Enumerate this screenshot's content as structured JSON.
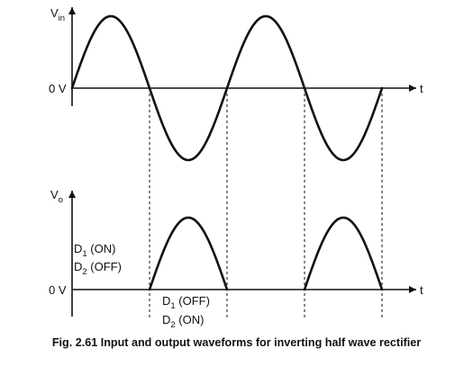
{
  "input_plot": {
    "y_label": "V",
    "y_label_sub": "in",
    "zero_label": "0 V",
    "t_label": "t"
  },
  "output_plot": {
    "y_label": "V",
    "y_label_sub": "o",
    "zero_label": "0 V",
    "t_label": "t"
  },
  "annotations": {
    "d1_on": {
      "main": "D",
      "sub": "1",
      "rest": " (ON)"
    },
    "d2_off": {
      "main": "D",
      "sub": "2",
      "rest": " (OFF)"
    },
    "d1_off": {
      "main": "D",
      "sub": "1",
      "rest": " (OFF)"
    },
    "d2_on": {
      "main": "D",
      "sub": "2",
      "rest": " (ON)"
    }
  },
  "caption": "Fig. 2.61 Input and output waveforms for inverting half wave rectifier"
}
